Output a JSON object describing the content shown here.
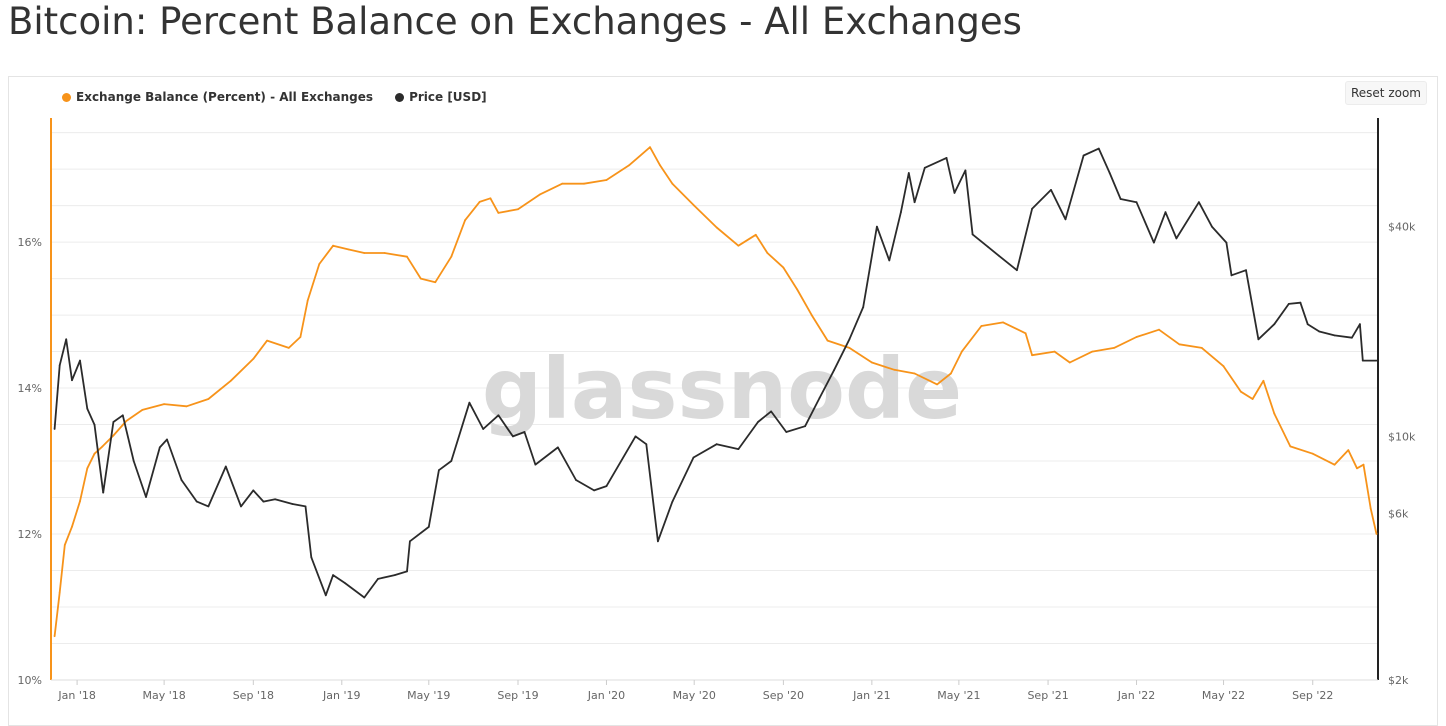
{
  "page": {
    "title": "Bitcoin: Percent Balance on Exchanges - All Exchanges"
  },
  "toolbar": {
    "reset_zoom_label": "Reset zoom"
  },
  "watermark": "glassnode",
  "colors": {
    "exchange_balance": "#f7931a",
    "price": "#2b2b2b",
    "grid": "#ececec"
  },
  "chart_data": {
    "type": "line",
    "title": "Bitcoin: Percent Balance on Exchanges - All Exchanges",
    "grid": true,
    "legend_position": "top-left",
    "x_ticks": [
      "Jan '18",
      "May '18",
      "Sep '18",
      "Jan '19",
      "May '19",
      "Sep '19",
      "Jan '20",
      "May '20",
      "Sep '20",
      "Jan '21",
      "May '21",
      "Sep '21",
      "Jan '22",
      "May '22",
      "Sep '22"
    ],
    "y_left": {
      "ticks": [
        "10%",
        "12%",
        "14%",
        "16%"
      ],
      "range": [
        10,
        17.7
      ],
      "unit": "%"
    },
    "y_right": {
      "ticks": [
        "$2k",
        "$6k",
        "$10k",
        "$40k"
      ],
      "scale": "log",
      "range": [
        2000,
        82000
      ]
    },
    "series": [
      {
        "name": "Exchange Balance (Percent) - All Exchanges",
        "axis": "left",
        "color": "#f7931a",
        "points": [
          [
            "2017-12-01",
            10.6
          ],
          [
            "2017-12-08",
            11.2
          ],
          [
            "2017-12-15",
            11.85
          ],
          [
            "2017-12-25",
            12.1
          ],
          [
            "2018-01-05",
            12.45
          ],
          [
            "2018-01-15",
            12.9
          ],
          [
            "2018-01-25",
            13.1
          ],
          [
            "2018-02-05",
            13.2
          ],
          [
            "2018-02-20",
            13.35
          ],
          [
            "2018-03-10",
            13.55
          ],
          [
            "2018-04-01",
            13.7
          ],
          [
            "2018-05-01",
            13.78
          ],
          [
            "2018-06-01",
            13.75
          ],
          [
            "2018-07-01",
            13.85
          ],
          [
            "2018-08-01",
            14.1
          ],
          [
            "2018-09-01",
            14.4
          ],
          [
            "2018-09-20",
            14.65
          ],
          [
            "2018-10-20",
            14.55
          ],
          [
            "2018-11-05",
            14.7
          ],
          [
            "2018-11-15",
            15.2
          ],
          [
            "2018-12-01",
            15.7
          ],
          [
            "2018-12-20",
            15.95
          ],
          [
            "2019-01-10",
            15.9
          ],
          [
            "2019-02-01",
            15.85
          ],
          [
            "2019-03-01",
            15.85
          ],
          [
            "2019-04-01",
            15.8
          ],
          [
            "2019-04-20",
            15.5
          ],
          [
            "2019-05-10",
            15.45
          ],
          [
            "2019-06-01",
            15.8
          ],
          [
            "2019-06-20",
            16.3
          ],
          [
            "2019-07-10",
            16.55
          ],
          [
            "2019-07-25",
            16.6
          ],
          [
            "2019-08-05",
            16.4
          ],
          [
            "2019-09-01",
            16.45
          ],
          [
            "2019-10-01",
            16.65
          ],
          [
            "2019-11-01",
            16.8
          ],
          [
            "2019-12-01",
            16.8
          ],
          [
            "2020-01-01",
            16.85
          ],
          [
            "2020-02-01",
            17.05
          ],
          [
            "2020-03-01",
            17.3
          ],
          [
            "2020-03-15",
            17.05
          ],
          [
            "2020-04-01",
            16.8
          ],
          [
            "2020-05-01",
            16.5
          ],
          [
            "2020-06-01",
            16.2
          ],
          [
            "2020-07-01",
            15.95
          ],
          [
            "2020-07-25",
            16.1
          ],
          [
            "2020-08-10",
            15.85
          ],
          [
            "2020-09-01",
            15.65
          ],
          [
            "2020-09-20",
            15.35
          ],
          [
            "2020-10-10",
            15.0
          ],
          [
            "2020-11-01",
            14.65
          ],
          [
            "2020-12-01",
            14.55
          ],
          [
            "2021-01-01",
            14.35
          ],
          [
            "2021-02-01",
            14.25
          ],
          [
            "2021-03-01",
            14.2
          ],
          [
            "2021-04-01",
            14.05
          ],
          [
            "2021-04-20",
            14.2
          ],
          [
            "2021-05-05",
            14.5
          ],
          [
            "2021-06-01",
            14.85
          ],
          [
            "2021-07-01",
            14.9
          ],
          [
            "2021-08-01",
            14.75
          ],
          [
            "2021-08-10",
            14.45
          ],
          [
            "2021-09-10",
            14.5
          ],
          [
            "2021-10-01",
            14.35
          ],
          [
            "2021-11-01",
            14.5
          ],
          [
            "2021-12-01",
            14.55
          ],
          [
            "2022-01-01",
            14.7
          ],
          [
            "2022-02-01",
            14.8
          ],
          [
            "2022-03-01",
            14.6
          ],
          [
            "2022-04-01",
            14.55
          ],
          [
            "2022-05-01",
            14.3
          ],
          [
            "2022-05-25",
            13.95
          ],
          [
            "2022-06-10",
            13.85
          ],
          [
            "2022-06-25",
            14.1
          ],
          [
            "2022-07-10",
            13.65
          ],
          [
            "2022-08-01",
            13.2
          ],
          [
            "2022-09-01",
            13.1
          ],
          [
            "2022-10-01",
            12.95
          ],
          [
            "2022-10-20",
            13.15
          ],
          [
            "2022-11-01",
            12.9
          ],
          [
            "2022-11-10",
            12.95
          ],
          [
            "2022-11-20",
            12.35
          ],
          [
            "2022-11-28",
            12.0
          ]
        ]
      },
      {
        "name": "Price [USD]",
        "axis": "right",
        "color": "#2b2b2b",
        "points": [
          [
            "2017-12-01",
            10500
          ],
          [
            "2017-12-08",
            16000
          ],
          [
            "2017-12-17",
            19000
          ],
          [
            "2017-12-25",
            14500
          ],
          [
            "2018-01-05",
            16500
          ],
          [
            "2018-01-15",
            12000
          ],
          [
            "2018-01-25",
            10800
          ],
          [
            "2018-02-06",
            6900
          ],
          [
            "2018-02-20",
            11000
          ],
          [
            "2018-03-05",
            11500
          ],
          [
            "2018-03-20",
            8500
          ],
          [
            "2018-04-06",
            6700
          ],
          [
            "2018-04-25",
            9300
          ],
          [
            "2018-05-05",
            9800
          ],
          [
            "2018-05-25",
            7500
          ],
          [
            "2018-06-15",
            6500
          ],
          [
            "2018-07-01",
            6300
          ],
          [
            "2018-07-25",
            8200
          ],
          [
            "2018-08-15",
            6300
          ],
          [
            "2018-09-01",
            7000
          ],
          [
            "2018-09-15",
            6500
          ],
          [
            "2018-10-01",
            6600
          ],
          [
            "2018-10-25",
            6400
          ],
          [
            "2018-11-12",
            6300
          ],
          [
            "2018-11-20",
            4500
          ],
          [
            "2018-12-10",
            3500
          ],
          [
            "2018-12-20",
            4000
          ],
          [
            "2019-01-05",
            3800
          ],
          [
            "2019-02-01",
            3450
          ],
          [
            "2019-02-20",
            3900
          ],
          [
            "2019-03-15",
            4000
          ],
          [
            "2019-04-01",
            4100
          ],
          [
            "2019-04-05",
            5000
          ],
          [
            "2019-05-01",
            5500
          ],
          [
            "2019-05-15",
            8000
          ],
          [
            "2019-06-01",
            8500
          ],
          [
            "2019-06-26",
            12500
          ],
          [
            "2019-07-15",
            10500
          ],
          [
            "2019-08-05",
            11500
          ],
          [
            "2019-08-25",
            10000
          ],
          [
            "2019-09-10",
            10300
          ],
          [
            "2019-09-25",
            8300
          ],
          [
            "2019-10-26",
            9300
          ],
          [
            "2019-11-20",
            7500
          ],
          [
            "2019-12-15",
            7000
          ],
          [
            "2020-01-01",
            7200
          ],
          [
            "2020-02-10",
            10000
          ],
          [
            "2020-02-25",
            9500
          ],
          [
            "2020-03-12",
            5000
          ],
          [
            "2020-04-01",
            6500
          ],
          [
            "2020-04-30",
            8700
          ],
          [
            "2020-06-01",
            9500
          ],
          [
            "2020-07-01",
            9200
          ],
          [
            "2020-07-28",
            11000
          ],
          [
            "2020-08-15",
            11800
          ],
          [
            "2020-09-05",
            10300
          ],
          [
            "2020-10-01",
            10700
          ],
          [
            "2020-10-21",
            12900
          ],
          [
            "2020-11-10",
            15500
          ],
          [
            "2020-12-01",
            19000
          ],
          [
            "2020-12-20",
            23500
          ],
          [
            "2021-01-08",
            40000
          ],
          [
            "2021-01-25",
            32000
          ],
          [
            "2021-02-10",
            44000
          ],
          [
            "2021-02-21",
            57000
          ],
          [
            "2021-03-01",
            47000
          ],
          [
            "2021-03-15",
            59000
          ],
          [
            "2021-04-14",
            63000
          ],
          [
            "2021-04-25",
            50000
          ],
          [
            "2021-05-10",
            58000
          ],
          [
            "2021-05-20",
            38000
          ],
          [
            "2021-06-10",
            35000
          ],
          [
            "2021-06-25",
            33000
          ],
          [
            "2021-07-20",
            30000
          ],
          [
            "2021-08-10",
            45000
          ],
          [
            "2021-09-05",
            51000
          ],
          [
            "2021-09-25",
            42000
          ],
          [
            "2021-10-20",
            64000
          ],
          [
            "2021-11-10",
            67000
          ],
          [
            "2021-11-25",
            57000
          ],
          [
            "2021-12-10",
            48000
          ],
          [
            "2022-01-01",
            47000
          ],
          [
            "2022-01-25",
            36000
          ],
          [
            "2022-02-10",
            44000
          ],
          [
            "2022-02-25",
            37000
          ],
          [
            "2022-03-28",
            47000
          ],
          [
            "2022-04-15",
            40000
          ],
          [
            "2022-05-05",
            36000
          ],
          [
            "2022-05-12",
            29000
          ],
          [
            "2022-06-01",
            30000
          ],
          [
            "2022-06-18",
            19000
          ],
          [
            "2022-07-10",
            21000
          ],
          [
            "2022-07-30",
            24000
          ],
          [
            "2022-08-15",
            24200
          ],
          [
            "2022-08-25",
            21000
          ],
          [
            "2022-09-10",
            20000
          ],
          [
            "2022-10-01",
            19500
          ],
          [
            "2022-10-25",
            19200
          ],
          [
            "2022-11-05",
            21000
          ],
          [
            "2022-11-09",
            16500
          ],
          [
            "2022-11-28",
            16500
          ]
        ]
      }
    ]
  }
}
